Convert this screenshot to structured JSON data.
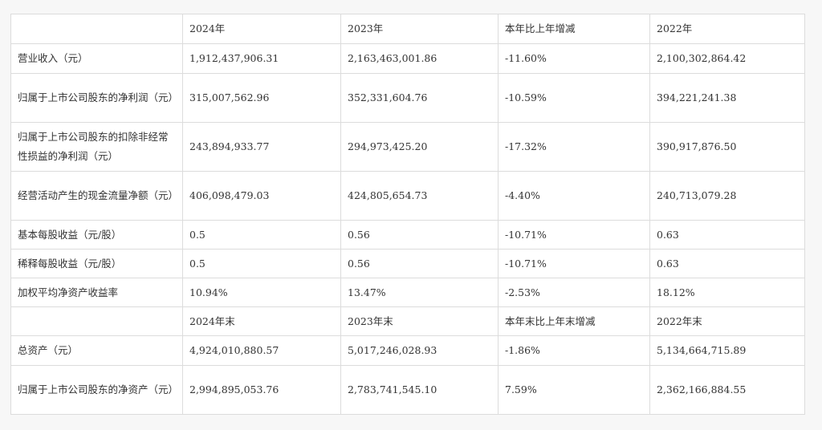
{
  "table": {
    "header_top": [
      "",
      "2024年",
      "2023年",
      "本年比上年增减",
      "2022年"
    ],
    "rows_top": [
      {
        "label": "营业收入（元）",
        "v2024": "1,912,437,906.31",
        "v2023": "2,163,463,001.86",
        "change": "-11.60%",
        "v2022": "2,100,302,864.42"
      },
      {
        "label": "归属于上市公司股东的净利润（元）",
        "v2024": "315,007,562.96",
        "v2023": "352,331,604.76",
        "change": "-10.59%",
        "v2022": "394,221,241.38"
      },
      {
        "label": "归属于上市公司股东的扣除非经常性损益的净利润（元）",
        "v2024": "243,894,933.77",
        "v2023": "294,973,425.20",
        "change": "-17.32%",
        "v2022": "390,917,876.50"
      },
      {
        "label": "经营活动产生的现金流量净额（元）",
        "v2024": "406,098,479.03",
        "v2023": "424,805,654.73",
        "change": "-4.40%",
        "v2022": "240,713,079.28"
      },
      {
        "label": "基本每股收益（元/股）",
        "v2024": "0.5",
        "v2023": "0.56",
        "change": "-10.71%",
        "v2022": "0.63"
      },
      {
        "label": "稀释每股收益（元/股）",
        "v2024": "0.5",
        "v2023": "0.56",
        "change": "-10.71%",
        "v2022": "0.63"
      },
      {
        "label": "加权平均净资产收益率",
        "v2024": "10.94%",
        "v2023": "13.47%",
        "change": "-2.53%",
        "v2022": "18.12%"
      }
    ],
    "header_bottom": [
      "",
      "2024年末",
      "2023年末",
      "本年末比上年末增减",
      "2022年末"
    ],
    "rows_bottom": [
      {
        "label": "总资产（元）",
        "v2024": "4,924,010,880.57",
        "v2023": "5,017,246,028.93",
        "change": "-1.86%",
        "v2022": "5,134,664,715.89"
      },
      {
        "label": "归属于上市公司股东的净资产（元）",
        "v2024": "2,994,895,053.76",
        "v2023": "2,783,741,545.10",
        "change": "7.59%",
        "v2022": "2,362,166,884.55"
      }
    ]
  }
}
